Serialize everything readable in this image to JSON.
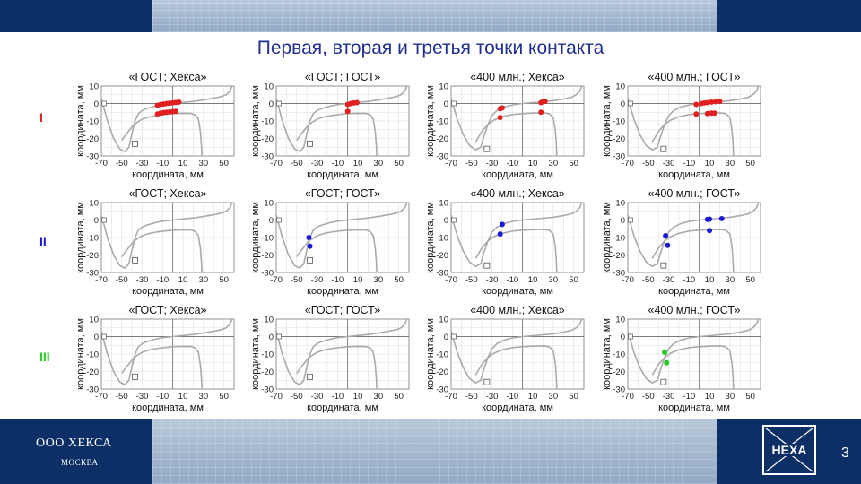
{
  "page": {
    "title": "Первая, вторая и третья точки контакта",
    "company": "ООО ХЕКСА",
    "city": "МОСКВА",
    "logo_text": "HEXA",
    "page_number": "3"
  },
  "colors": {
    "banner": "#0c2f66",
    "title": "#1f2f8f",
    "curve": "#aaaaaa",
    "row_I": "#e02020",
    "row_II": "#1a1ad0",
    "row_III": "#22cc22"
  },
  "rows": [
    {
      "label": "I",
      "color": "#e02020"
    },
    {
      "label": "II",
      "color": "#1a1ad0"
    },
    {
      "label": "III",
      "color": "#22cc22"
    }
  ],
  "chart_data": [
    {
      "type": "scatter",
      "title": "«ГОСТ; Хекса»",
      "xlabel": "координата, мм",
      "ylabel": "координата, мм",
      "xlim": [
        -70,
        60
      ],
      "ylim": [
        -30,
        10
      ],
      "xticks": [
        -70,
        -50,
        -30,
        -10,
        10,
        30,
        50
      ],
      "yticks": [
        10,
        0,
        -10,
        -20,
        -30
      ],
      "grid": true,
      "profile": "gost",
      "row": "I",
      "series": [
        {
          "color": "#e02020",
          "points": [
            [
              -15,
              -1
            ],
            [
              -12,
              -0.5
            ],
            [
              -9,
              -0.3
            ],
            [
              -6,
              0
            ],
            [
              -3,
              0.2
            ],
            [
              0,
              0.4
            ],
            [
              3,
              0.6
            ],
            [
              6,
              0.8
            ],
            [
              -15,
              -6
            ],
            [
              -12,
              -5.5
            ],
            [
              -9,
              -5.2
            ],
            [
              -6,
              -5
            ],
            [
              -3,
              -4.8
            ],
            [
              0,
              -4.6
            ],
            [
              3,
              -4.5
            ]
          ]
        }
      ]
    },
    {
      "type": "scatter",
      "title": "«ГОСТ; ГОСТ»",
      "xlabel": "координата, мм",
      "ylabel": "координата, мм",
      "xlim": [
        -70,
        60
      ],
      "ylim": [
        -30,
        10
      ],
      "xticks": [
        -70,
        -50,
        -30,
        -10,
        10,
        30,
        50
      ],
      "yticks": [
        10,
        0,
        -10,
        -20,
        -30
      ],
      "grid": true,
      "profile": "gost",
      "row": "I",
      "series": [
        {
          "color": "#e02020",
          "points": [
            [
              0,
              -0.5
            ],
            [
              3,
              0
            ],
            [
              6,
              0.3
            ],
            [
              9,
              0.5
            ],
            [
              0,
              -4.5
            ]
          ]
        }
      ]
    },
    {
      "type": "scatter",
      "title": "«400 млн.; Хекса»",
      "xlabel": "координата, мм",
      "ylabel": "координата, мм",
      "xlim": [
        -70,
        60
      ],
      "ylim": [
        -30,
        10
      ],
      "xticks": [
        -70,
        -50,
        -30,
        -10,
        10,
        30,
        50
      ],
      "yticks": [
        10,
        0,
        -10,
        -20,
        -30
      ],
      "grid": true,
      "profile": "m400",
      "row": "I",
      "series": [
        {
          "color": "#e02020",
          "points": [
            [
              -22,
              -3
            ],
            [
              -20,
              -2.5
            ],
            [
              -22,
              -8
            ],
            [
              18,
              0.5
            ],
            [
              20,
              1
            ],
            [
              22,
              1.2
            ],
            [
              18,
              -5
            ]
          ]
        }
      ]
    },
    {
      "type": "scatter",
      "title": "«400 млн.; ГОСТ»",
      "xlabel": "координата, мм",
      "ylabel": "координата, мм",
      "xlim": [
        -70,
        60
      ],
      "ylim": [
        -30,
        10
      ],
      "xticks": [
        -70,
        -50,
        -30,
        -10,
        10,
        30,
        50
      ],
      "yticks": [
        10,
        0,
        -10,
        -20,
        -30
      ],
      "grid": true,
      "profile": "m400",
      "row": "I",
      "series": [
        {
          "color": "#e02020",
          "points": [
            [
              -3,
              -0.5
            ],
            [
              2,
              0
            ],
            [
              5,
              0.3
            ],
            [
              8,
              0.5
            ],
            [
              12,
              0.8
            ],
            [
              16,
              1
            ],
            [
              20,
              1.2
            ],
            [
              -3,
              -6
            ],
            [
              8,
              -5.8
            ],
            [
              12,
              -5.5
            ],
            [
              15,
              -5.5
            ]
          ]
        }
      ]
    },
    {
      "type": "scatter",
      "title": "«ГОСТ; Хекса»",
      "xlabel": "координата, мм",
      "ylabel": "координата, мм",
      "xlim": [
        -70,
        60
      ],
      "ylim": [
        -30,
        10
      ],
      "xticks": [
        -70,
        -50,
        -30,
        -10,
        10,
        30,
        50
      ],
      "yticks": [
        10,
        0,
        -10,
        -20,
        -30
      ],
      "grid": true,
      "profile": "gost",
      "row": "II",
      "series": [
        {
          "color": "#1a1ad0",
          "points": []
        }
      ]
    },
    {
      "type": "scatter",
      "title": "«ГОСТ; ГОСТ»",
      "xlabel": "координата, мм",
      "ylabel": "координата, мм",
      "xlim": [
        -70,
        60
      ],
      "ylim": [
        -30,
        10
      ],
      "xticks": [
        -70,
        -50,
        -30,
        -10,
        10,
        30,
        50
      ],
      "yticks": [
        10,
        0,
        -10,
        -20,
        -30
      ],
      "grid": true,
      "profile": "gost",
      "row": "II",
      "series": [
        {
          "color": "#1a1ad0",
          "points": [
            [
              -38,
              -10
            ],
            [
              -37,
              -15
            ]
          ]
        }
      ]
    },
    {
      "type": "scatter",
      "title": "«400 млн.; Хекса»",
      "xlabel": "координата, мм",
      "ylabel": "координата, мм",
      "xlim": [
        -70,
        60
      ],
      "ylim": [
        -30,
        10
      ],
      "xticks": [
        -70,
        -50,
        -30,
        -10,
        10,
        30,
        50
      ],
      "yticks": [
        10,
        0,
        -10,
        -20,
        -30
      ],
      "grid": true,
      "profile": "m400",
      "row": "II",
      "series": [
        {
          "color": "#1a1ad0",
          "points": [
            [
              -20,
              -2.5
            ],
            [
              -22,
              -8
            ]
          ]
        }
      ]
    },
    {
      "type": "scatter",
      "title": "«400 млн.; ГОСТ»",
      "xlabel": "координата, мм",
      "ylabel": "координата, мм",
      "xlim": [
        -70,
        60
      ],
      "ylim": [
        -30,
        10
      ],
      "xticks": [
        -70,
        -50,
        -30,
        -10,
        10,
        30,
        50
      ],
      "yticks": [
        10,
        0,
        -10,
        -20,
        -30
      ],
      "grid": true,
      "profile": "m400",
      "row": "II",
      "series": [
        {
          "color": "#1a1ad0",
          "points": [
            [
              8,
              0.3
            ],
            [
              10,
              0.5
            ],
            [
              22,
              0.8
            ],
            [
              10,
              -6
            ],
            [
              -33,
              -9
            ],
            [
              -31,
              -14.5
            ]
          ]
        }
      ]
    },
    {
      "type": "scatter",
      "title": "«ГОСТ; Хекса»",
      "xlabel": "координата, мм",
      "ylabel": "координата, мм",
      "xlim": [
        -70,
        60
      ],
      "ylim": [
        -30,
        10
      ],
      "xticks": [
        -70,
        -50,
        -30,
        -10,
        10,
        30,
        50
      ],
      "yticks": [
        10,
        0,
        -10,
        -20,
        -30
      ],
      "grid": true,
      "profile": "gost",
      "row": "III",
      "series": [
        {
          "color": "#22cc22",
          "points": []
        }
      ]
    },
    {
      "type": "scatter",
      "title": "«ГОСТ; ГОСТ»",
      "xlabel": "координата, мм",
      "ylabel": "координата, мм",
      "xlim": [
        -70,
        60
      ],
      "ylim": [
        -30,
        10
      ],
      "xticks": [
        -70,
        -50,
        -30,
        -10,
        10,
        30,
        50
      ],
      "yticks": [
        10,
        0,
        -10,
        -20,
        -30
      ],
      "grid": true,
      "profile": "gost",
      "row": "III",
      "series": [
        {
          "color": "#22cc22",
          "points": []
        }
      ]
    },
    {
      "type": "scatter",
      "title": "«400 млн.; Хекса»",
      "xlabel": "координата, мм",
      "ylabel": "координата, мм",
      "xlim": [
        -70,
        60
      ],
      "ylim": [
        -30,
        10
      ],
      "xticks": [
        -70,
        -50,
        -30,
        -10,
        10,
        30,
        50
      ],
      "yticks": [
        10,
        0,
        -10,
        -20,
        -30
      ],
      "grid": true,
      "profile": "m400",
      "row": "III",
      "series": [
        {
          "color": "#22cc22",
          "points": []
        }
      ]
    },
    {
      "type": "scatter",
      "title": "«400 млн.; ГОСТ»",
      "xlabel": "координата, мм",
      "ylabel": "координата, мм",
      "xlim": [
        -70,
        60
      ],
      "ylim": [
        -30,
        10
      ],
      "xticks": [
        -70,
        -50,
        -30,
        -10,
        10,
        30,
        50
      ],
      "yticks": [
        10,
        0,
        -10,
        -20,
        -30
      ],
      "grid": true,
      "profile": "m400",
      "row": "III",
      "series": [
        {
          "color": "#22cc22",
          "points": [
            [
              -34,
              -9
            ],
            [
              -32,
              -15
            ]
          ]
        }
      ]
    }
  ]
}
